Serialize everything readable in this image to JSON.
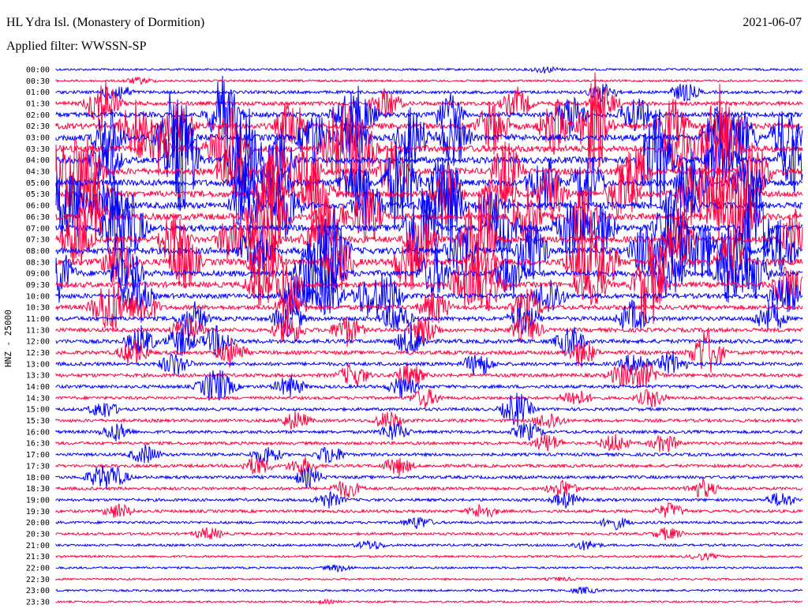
{
  "header": {
    "title": "HL Ydra Isl. (Monastery of Dormition)",
    "date": "2021-06-07",
    "filter": "Applied filter: WWSSN-SP",
    "channel_label": "HNZ - 25000"
  },
  "colors": {
    "blue": "#0000ff",
    "red": "#ff0040",
    "background": "#ffffff"
  },
  "chart_data": {
    "type": "line",
    "title": "HL Ydra Isl. (Monastery of Dormition)",
    "subtitle": "Applied filter: WWSSN-SP",
    "ylabel": "HNZ - 25000",
    "xlabel": "",
    "grid": false,
    "row_tick_labels": [
      "00:00",
      "00:30",
      "01:00",
      "01:30",
      "02:00",
      "02:30",
      "03:00",
      "03:30",
      "04:00",
      "04:30",
      "05:00",
      "05:30",
      "06:00",
      "06:30",
      "07:00",
      "07:30",
      "08:00",
      "08:30",
      "09:00",
      "09:30",
      "10:00",
      "10:30",
      "11:00",
      "11:30",
      "12:00",
      "12:30",
      "13:00",
      "13:30",
      "14:00",
      "14:30",
      "15:00",
      "15:30",
      "16:00",
      "16:30",
      "17:00",
      "17:30",
      "18:00",
      "18:30",
      "19:00",
      "19:30",
      "20:00",
      "20:30",
      "21:00",
      "21:30",
      "22:00",
      "22:30",
      "23:00",
      "23:30"
    ],
    "row_colors": [
      "blue",
      "red"
    ],
    "activity": [
      0.1,
      0.1,
      0.3,
      0.5,
      0.7,
      0.9,
      1.0,
      1.0,
      1.0,
      1.0,
      1.0,
      1.0,
      1.0,
      1.0,
      1.0,
      1.0,
      1.0,
      1.0,
      0.9,
      0.8,
      0.7,
      0.6,
      0.55,
      0.5,
      0.5,
      0.45,
      0.4,
      0.4,
      0.35,
      0.3,
      0.3,
      0.3,
      0.3,
      0.3,
      0.3,
      0.3,
      0.3,
      0.3,
      0.25,
      0.25,
      0.2,
      0.2,
      0.15,
      0.1,
      0.1,
      0.05,
      0.1,
      0.05
    ]
  }
}
